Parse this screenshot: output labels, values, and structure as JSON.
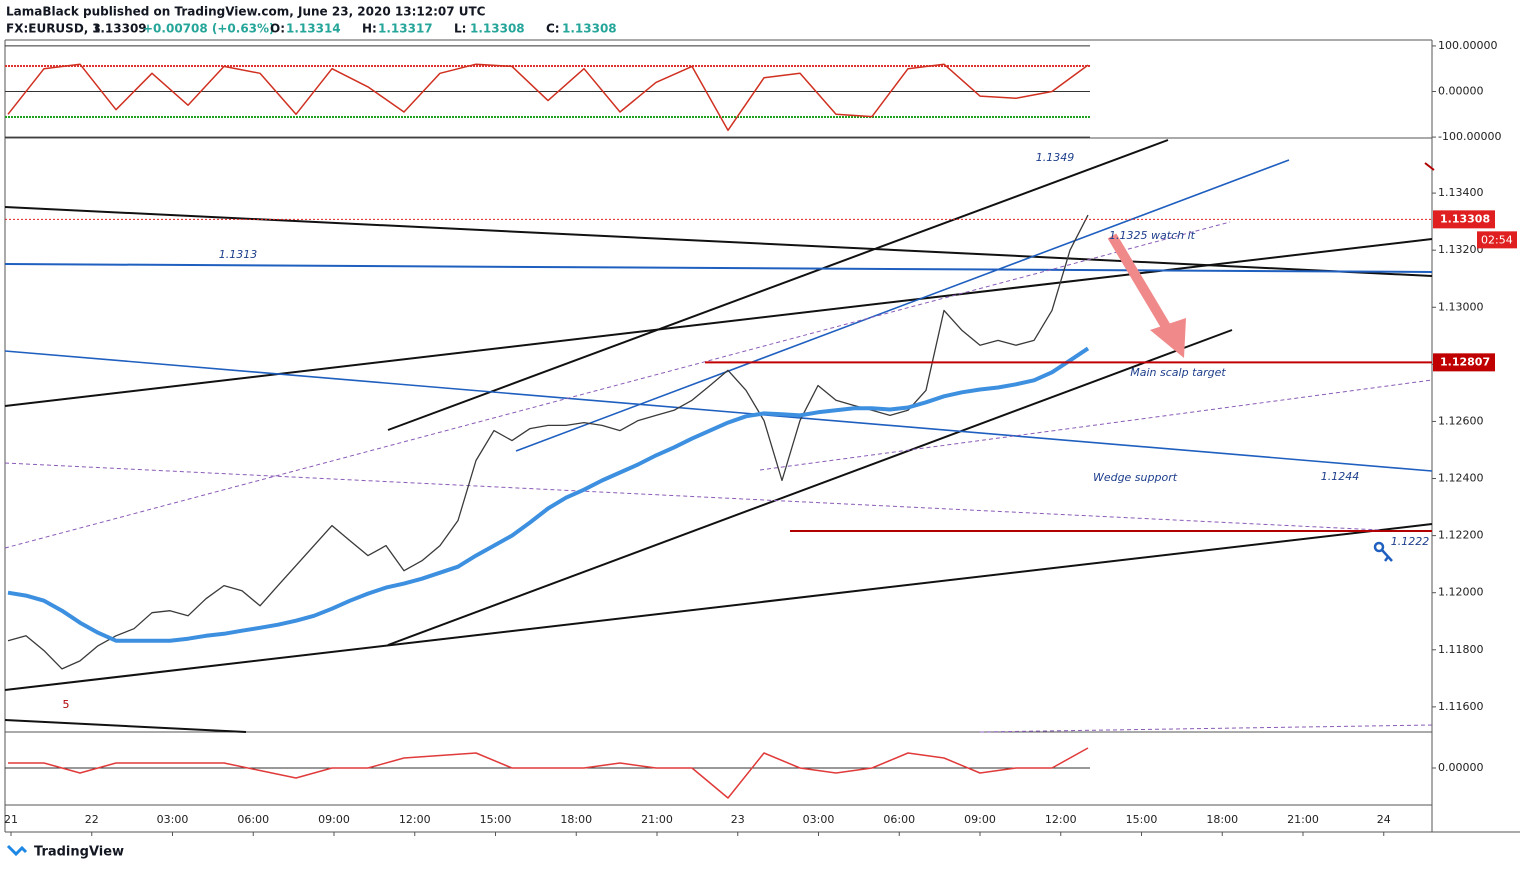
{
  "header": {
    "publisher": "LamaBlack published on TradingView.com, June 23, 2020 13:12:07 UTC",
    "symbol": "FX:EURUSD, 3",
    "last": 1.13309,
    "change": "+0.00708 (+0.63%)",
    "ohlc": [
      {
        "label": "O:",
        "value": 1.13314
      },
      {
        "label": "H:",
        "value": 1.13317
      },
      {
        "label": "L:",
        "value": 1.13308
      },
      {
        "label": "C:",
        "value": 1.13308
      }
    ]
  },
  "chart_data": [
    {
      "type": "oscillator",
      "ylim": [
        -102,
        113
      ],
      "yticks": [
        {
          "value": 100,
          "label": "100.00000"
        },
        {
          "value": 0,
          "label": "0.00000"
        },
        {
          "value": -100,
          "label": "-100.00000"
        }
      ],
      "levels": [
        {
          "value": 56,
          "color": "#e03030"
        },
        {
          "value": -56,
          "color": "#20a020"
        }
      ],
      "series": [
        {
          "color": "#d03020",
          "values": [
            -50,
            50,
            60,
            -40,
            40,
            -30,
            55,
            40,
            -50,
            50,
            10,
            -45,
            40,
            60,
            55,
            -20,
            50,
            -45,
            20,
            55,
            -85,
            30,
            40,
            -50,
            -55,
            50,
            60,
            -10,
            -15,
            0,
            58
          ]
        }
      ]
    },
    {
      "type": "line",
      "ylim": [
        1.11512,
        1.13593
      ],
      "yticks": [
        {
          "value": 1.116,
          "label": "1.11600"
        },
        {
          "value": 1.118,
          "label": "1.11800"
        },
        {
          "value": 1.12,
          "label": "1.12000"
        },
        {
          "value": 1.122,
          "label": "1.12200"
        },
        {
          "value": 1.124,
          "label": "1.12400"
        },
        {
          "value": 1.126,
          "label": "1.12600"
        },
        {
          "value": 1.128,
          "label": "1.12800"
        },
        {
          "value": 1.13,
          "label": "1.13000"
        },
        {
          "value": 1.132,
          "label": "1.13200"
        },
        {
          "value": 1.134,
          "label": "1.13400"
        }
      ],
      "series": [
        {
          "color": "#3a3a3a",
          "width": 1.3,
          "values": [
            1.11832,
            1.11849,
            1.11797,
            1.11733,
            1.11761,
            1.11814,
            1.11849,
            1.11874,
            1.1193,
            1.11937,
            1.11919,
            1.11979,
            1.12025,
            1.12007,
            1.11954,
            1.12025,
            1.12095,
            1.12165,
            1.12235,
            1.12182,
            1.1213,
            1.12165,
            1.12077,
            1.12112,
            1.12165,
            1.12253,
            1.12463,
            1.12568,
            1.12533,
            1.12575,
            1.12586,
            1.12586,
            1.12596,
            1.12586,
            1.12568,
            1.12603,
            1.12621,
            1.12639,
            1.12674,
            1.12726,
            1.12779,
            1.12709,
            1.12603,
            1.12393,
            1.12603,
            1.12726,
            1.12674,
            1.12656,
            1.12639,
            1.12621,
            1.12639,
            1.12709,
            1.12989,
            1.12919,
            1.12867,
            1.12884,
            1.12867,
            1.12884,
            1.12989,
            1.132,
            1.13323
          ]
        },
        {
          "color": "#3d8fe0",
          "width": 4,
          "values": [
            1.12,
            1.1199,
            1.11972,
            1.11937,
            1.11895,
            1.1186,
            1.11832,
            1.11832,
            1.11832,
            1.11832,
            1.11839,
            1.11849,
            1.11856,
            1.11867,
            1.11877,
            1.11888,
            1.11902,
            1.11919,
            1.11944,
            1.11972,
            1.11997,
            1.12018,
            1.12032,
            1.12049,
            1.1207,
            1.12091,
            1.1213,
            1.12165,
            1.122,
            1.12246,
            1.12295,
            1.12333,
            1.12361,
            1.12393,
            1.12421,
            1.12449,
            1.12481,
            1.12509,
            1.1254,
            1.12568,
            1.12596,
            1.12618,
            1.12628,
            1.12625,
            1.12621,
            1.12632,
            1.12639,
            1.12646,
            1.12646,
            1.12642,
            1.12649,
            1.12667,
            1.12688,
            1.12702,
            1.12712,
            1.12719,
            1.1273,
            1.12744,
            1.12772,
            1.12814,
            1.12856
          ]
        }
      ],
      "price_tags": [
        {
          "value": 1.13308,
          "color": "#e02020"
        },
        {
          "value": 1.12807,
          "color": "#c00000"
        }
      ],
      "countdown": "02:54",
      "annotations": [
        "1.1349",
        "1.1313",
        "1.1325 watch it",
        "Main scalp target",
        "Wedge support",
        "1.1244",
        "1.1222",
        "5"
      ]
    },
    {
      "type": "oscillator",
      "ylim": [
        -0.00074,
        0.0007
      ],
      "yticks": [
        {
          "value": 0,
          "label": "0.00000"
        }
      ],
      "series": [
        {
          "color": "#e03a3a",
          "values": [
            0.0001,
            0.0001,
            -0.0001,
            0.0001,
            0.0001,
            0.0001,
            0.0001,
            -5e-05,
            -0.0002,
            0,
            0,
            0.0002,
            0.00025,
            0.0003,
            0,
            0,
            0,
            0.0001,
            0,
            0,
            -0.0006,
            0.0003,
            0,
            -0.0001,
            0,
            0.0003,
            0.0002,
            -0.0001,
            0,
            0,
            0.0004
          ]
        }
      ]
    }
  ],
  "x_axis_labels": [
    "21",
    "22",
    "03:00",
    "06:00",
    "09:00",
    "12:00",
    "15:00",
    "18:00",
    "21:00",
    "23",
    "03:00",
    "06:00",
    "09:00",
    "12:00",
    "15:00",
    "18:00",
    "21:00",
    "24"
  ],
  "branding": "TradingView"
}
